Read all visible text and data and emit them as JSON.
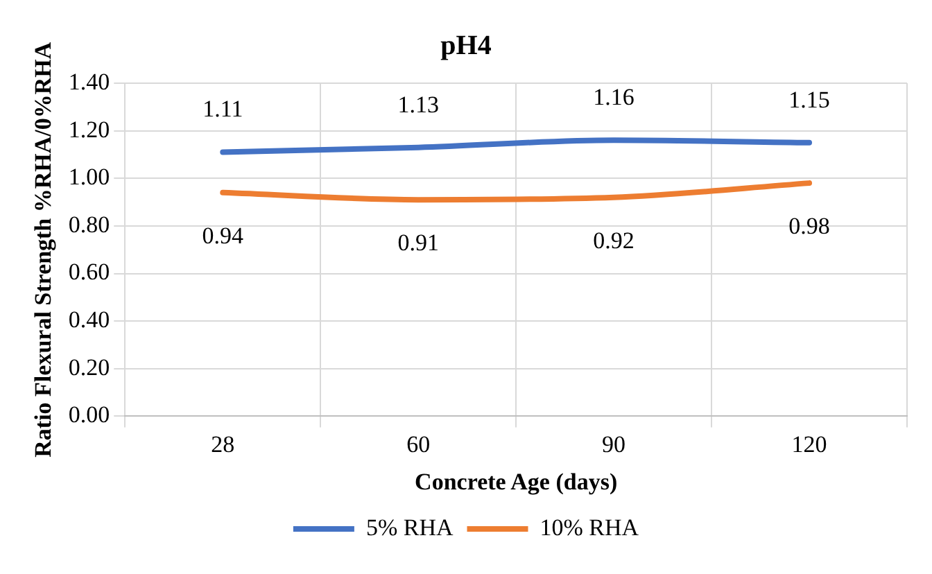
{
  "chart_data": {
    "type": "line",
    "title": "pH4",
    "xlabel": "Concrete Age (days)",
    "ylabel": "Ratio Flexural Strength %RHA/0%RHA",
    "categories": [
      "28",
      "60",
      "90",
      "120"
    ],
    "series": [
      {
        "name": "5% RHA",
        "color": "#4472c4",
        "values": [
          1.11,
          1.13,
          1.16,
          1.15
        ]
      },
      {
        "name": "10% RHA",
        "color": "#ed7d31",
        "values": [
          0.94,
          0.91,
          0.92,
          0.98
        ]
      }
    ],
    "ylim": [
      0,
      1.4
    ],
    "yticks": [
      {
        "value": 0,
        "label": "0.00"
      },
      {
        "value": 0.2,
        "label": "0.20"
      },
      {
        "value": 0.4,
        "label": "0.40"
      },
      {
        "value": 0.6,
        "label": "0.60"
      },
      {
        "value": 0.8,
        "label": "0.80"
      },
      {
        "value": 1,
        "label": "1.00"
      },
      {
        "value": 1.2,
        "label": "1.20"
      },
      {
        "value": 1.4,
        "label": "1.40"
      }
    ],
    "grid": true,
    "legend": "bottom",
    "data_labels": true,
    "marker": "none",
    "line_style": "solid"
  }
}
